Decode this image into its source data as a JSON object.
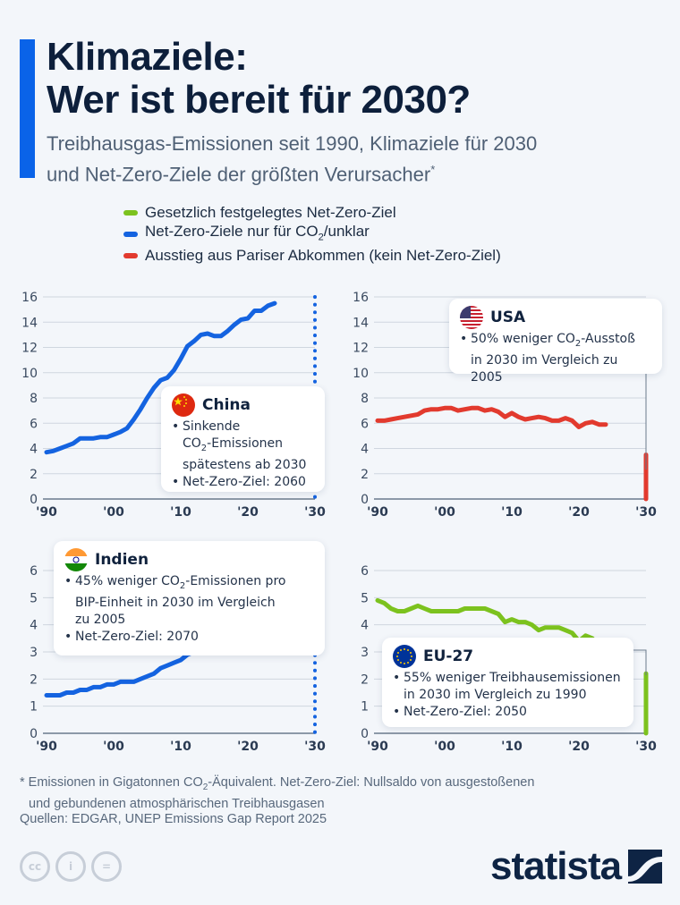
{
  "header": {
    "title_line1": "Klimaziele:",
    "title_line2": "Wer ist bereit für 2030?",
    "subtitle_line1": "Treibhausgas-Emissionen seit 1990, Klimaziele für 2030",
    "subtitle_line2": "und Net-Zero-Ziele der größten Verursacher",
    "subtitle_marker": "*"
  },
  "legend": [
    {
      "label": "Gesetzlich festgelegtes Net-Zero-Ziel",
      "color": "#7cc21e"
    },
    {
      "label_pre": "Net-Zero-Ziele nur für CO",
      "label_sub": "2",
      "label_post": "/unklar",
      "color": "#1463e0"
    },
    {
      "label": "Ausstieg aus Pariser Abkommen (kein Net-Zero-Ziel)",
      "color": "#e23a2e"
    }
  ],
  "colors": {
    "accent": "#0a63e8",
    "green": "#7cc21e",
    "blue": "#1463e0",
    "red": "#e23a2e",
    "brand": "#0e2444"
  },
  "chart_data": [
    {
      "type": "line",
      "name": "China",
      "category": "blue",
      "x": [
        1990,
        1991,
        1992,
        1993,
        1994,
        1995,
        1996,
        1997,
        1998,
        1999,
        2000,
        2001,
        2002,
        2003,
        2004,
        2005,
        2006,
        2007,
        2008,
        2009,
        2010,
        2011,
        2012,
        2013,
        2014,
        2015,
        2016,
        2017,
        2018,
        2019,
        2020,
        2021,
        2022,
        2023,
        2024
      ],
      "values": [
        3.7,
        3.8,
        4.0,
        4.2,
        4.4,
        4.8,
        4.8,
        4.8,
        4.9,
        4.9,
        5.1,
        5.3,
        5.6,
        6.3,
        7.1,
        8.0,
        8.8,
        9.4,
        9.6,
        10.2,
        11.1,
        12.1,
        12.5,
        13.0,
        13.1,
        12.9,
        12.9,
        13.3,
        13.8,
        14.2,
        14.3,
        14.9,
        14.9,
        15.3,
        15.5
      ],
      "target_2030": null,
      "target_style": "dotted-line",
      "ylim": [
        0,
        16
      ],
      "yticks": [
        0,
        2,
        4,
        6,
        8,
        10,
        12,
        14,
        16
      ],
      "xticks": [
        "'90",
        "'00",
        "'10",
        "'20",
        "'30"
      ],
      "card": {
        "title": "China",
        "lines": [
          {
            "bullet": true,
            "text": "Sinkende"
          },
          {
            "bullet": false,
            "pre": "CO",
            "sub": "2",
            "post": "-Emissionen"
          },
          {
            "bullet": false,
            "text": "spätestens ab 2030"
          },
          {
            "bullet": true,
            "text": "Net-Zero-Ziel: 2060"
          }
        ]
      }
    },
    {
      "type": "line",
      "name": "USA",
      "category": "red",
      "x": [
        1990,
        1991,
        1992,
        1993,
        1994,
        1995,
        1996,
        1997,
        1998,
        1999,
        2000,
        2001,
        2002,
        2003,
        2004,
        2005,
        2006,
        2007,
        2008,
        2009,
        2010,
        2011,
        2012,
        2013,
        2014,
        2015,
        2016,
        2017,
        2018,
        2019,
        2020,
        2021,
        2022,
        2023,
        2024
      ],
      "values": [
        6.2,
        6.2,
        6.3,
        6.4,
        6.5,
        6.6,
        6.7,
        7.0,
        7.1,
        7.1,
        7.2,
        7.2,
        7.0,
        7.1,
        7.2,
        7.2,
        7.0,
        7.1,
        6.9,
        6.5,
        6.8,
        6.5,
        6.3,
        6.4,
        6.5,
        6.4,
        6.2,
        6.2,
        6.4,
        6.2,
        5.7,
        6.0,
        6.1,
        5.9,
        5.9
      ],
      "target_2030": 3.5,
      "target_style": "bar",
      "ylim": [
        0,
        16
      ],
      "yticks": [
        0,
        2,
        4,
        6,
        8,
        10,
        12,
        14,
        16
      ],
      "xticks": [
        "'90",
        "'00",
        "'10",
        "'20",
        "'30"
      ],
      "card": {
        "title": "USA",
        "lines": [
          {
            "bullet": true,
            "pre": "50% weniger CO",
            "sub": "2",
            "post": "-Ausstoß"
          },
          {
            "bullet": false,
            "text": "in 2030 im Vergleich zu 2005"
          }
        ]
      }
    },
    {
      "type": "line",
      "name": "Indien",
      "category": "blue",
      "x": [
        1990,
        1991,
        1992,
        1993,
        1994,
        1995,
        1996,
        1997,
        1998,
        1999,
        2000,
        2001,
        2002,
        2003,
        2004,
        2005,
        2006,
        2007,
        2008,
        2009,
        2010,
        2011,
        2012,
        2013,
        2014,
        2015,
        2016,
        2017,
        2018,
        2019,
        2020,
        2021,
        2022,
        2023,
        2024
      ],
      "values": [
        1.4,
        1.4,
        1.4,
        1.5,
        1.5,
        1.6,
        1.6,
        1.7,
        1.7,
        1.8,
        1.8,
        1.9,
        1.9,
        1.9,
        2.0,
        2.1,
        2.2,
        2.4,
        2.5,
        2.6,
        2.7,
        2.9,
        3.0,
        3.1,
        3.3,
        3.3,
        3.4,
        3.5,
        3.6,
        3.6,
        3.5,
        3.7,
        4.0,
        4.2,
        4.4
      ],
      "target_2030": null,
      "target_style": "dotted-line",
      "ylim": [
        0,
        6
      ],
      "yticks": [
        0,
        1,
        2,
        3,
        4,
        5,
        6
      ],
      "xticks": [
        "'90",
        "'00",
        "'10",
        "'20",
        "'30"
      ],
      "card": {
        "title": "Indien",
        "lines": [
          {
            "bullet": true,
            "pre": "45% weniger CO",
            "sub": "2",
            "post": "-Emissionen pro"
          },
          {
            "bullet": false,
            "text": "BIP-Einheit in 2030 im Vergleich"
          },
          {
            "bullet": false,
            "text": "zu 2005"
          },
          {
            "bullet": true,
            "text": "Net-Zero-Ziel: 2070"
          }
        ]
      }
    },
    {
      "type": "line",
      "name": "EU-27",
      "category": "green",
      "x": [
        1990,
        1991,
        1992,
        1993,
        1994,
        1995,
        1996,
        1997,
        1998,
        1999,
        2000,
        2001,
        2002,
        2003,
        2004,
        2005,
        2006,
        2007,
        2008,
        2009,
        2010,
        2011,
        2012,
        2013,
        2014,
        2015,
        2016,
        2017,
        2018,
        2019,
        2020,
        2021,
        2022,
        2023,
        2024
      ],
      "values": [
        4.9,
        4.8,
        4.6,
        4.5,
        4.5,
        4.6,
        4.7,
        4.6,
        4.5,
        4.5,
        4.5,
        4.5,
        4.5,
        4.6,
        4.6,
        4.6,
        4.6,
        4.5,
        4.4,
        4.1,
        4.2,
        4.1,
        4.1,
        4.0,
        3.8,
        3.9,
        3.9,
        3.9,
        3.8,
        3.7,
        3.4,
        3.6,
        3.5,
        3.2,
        3.2
      ],
      "target_2030": 2.2,
      "target_style": "bar",
      "ylim": [
        0,
        6
      ],
      "yticks": [
        0,
        1,
        2,
        3,
        4,
        5,
        6
      ],
      "xticks": [
        "'90",
        "'00",
        "'10",
        "'20",
        "'30"
      ],
      "card": {
        "title": "EU-27",
        "lines": [
          {
            "bullet": true,
            "text": "55% weniger Treibhausemissionen"
          },
          {
            "bullet": false,
            "text": "in 2030 im Vergleich zu 1990"
          },
          {
            "bullet": true,
            "text": "Net-Zero-Ziel: 2050"
          }
        ]
      }
    }
  ],
  "footer": {
    "note_pre": "* Emissionen in Gigatonnen CO",
    "note_sub": "2",
    "note_post": "-Äquivalent. Net-Zero-Ziel: Nullsaldo von ausgestoßenen",
    "note_line2": "und gebundenen atmosphärischen Treibhausgasen",
    "source": "Quellen: EDGAR, UNEP Emissions Gap Report 2025",
    "cc_icons": [
      "cc-icon",
      "by-icon",
      "nd-icon"
    ],
    "cc_labels": [
      "cc",
      "i",
      "="
    ],
    "brand": "statista"
  }
}
